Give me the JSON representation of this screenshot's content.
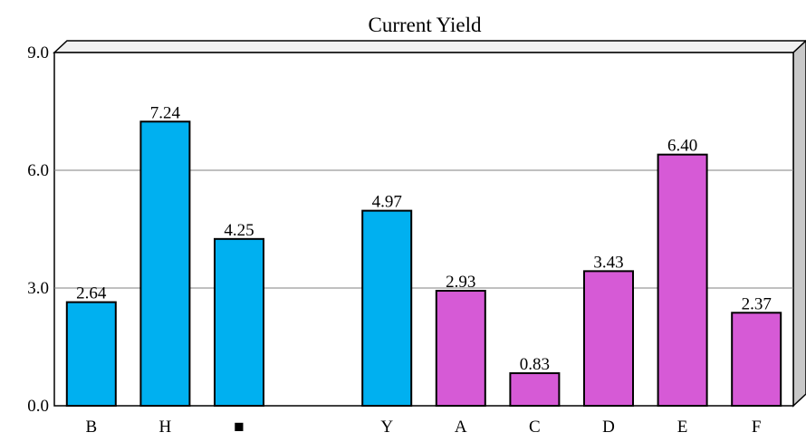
{
  "chart_data": {
    "type": "bar",
    "title": "Current Yield",
    "xlabel": "",
    "ylabel": "",
    "ylim": [
      0,
      9
    ],
    "yticks": [
      {
        "value": 0,
        "label": "0.0"
      },
      {
        "value": 3,
        "label": "3.0"
      },
      {
        "value": 6,
        "label": "6.0"
      },
      {
        "value": 9,
        "label": "9.0"
      }
    ],
    "grid": true,
    "categories": [
      "B",
      "H",
      "■",
      "",
      "Y",
      "A",
      "C",
      "D",
      "E",
      "F"
    ],
    "values": [
      2.64,
      7.24,
      4.25,
      null,
      4.97,
      2.93,
      0.83,
      3.43,
      6.4,
      2.37
    ],
    "value_labels": [
      "2.64",
      "7.24",
      "4.25",
      "",
      "4.97",
      "2.93",
      "0.83",
      "3.43",
      "6.40",
      "2.37"
    ],
    "bar_colors": [
      "#00b0f0",
      "#00b0f0",
      "#00b0f0",
      "",
      "#00b0f0",
      "#d65ad6",
      "#d65ad6",
      "#d65ad6",
      "#d65ad6",
      "#d65ad6"
    ]
  }
}
